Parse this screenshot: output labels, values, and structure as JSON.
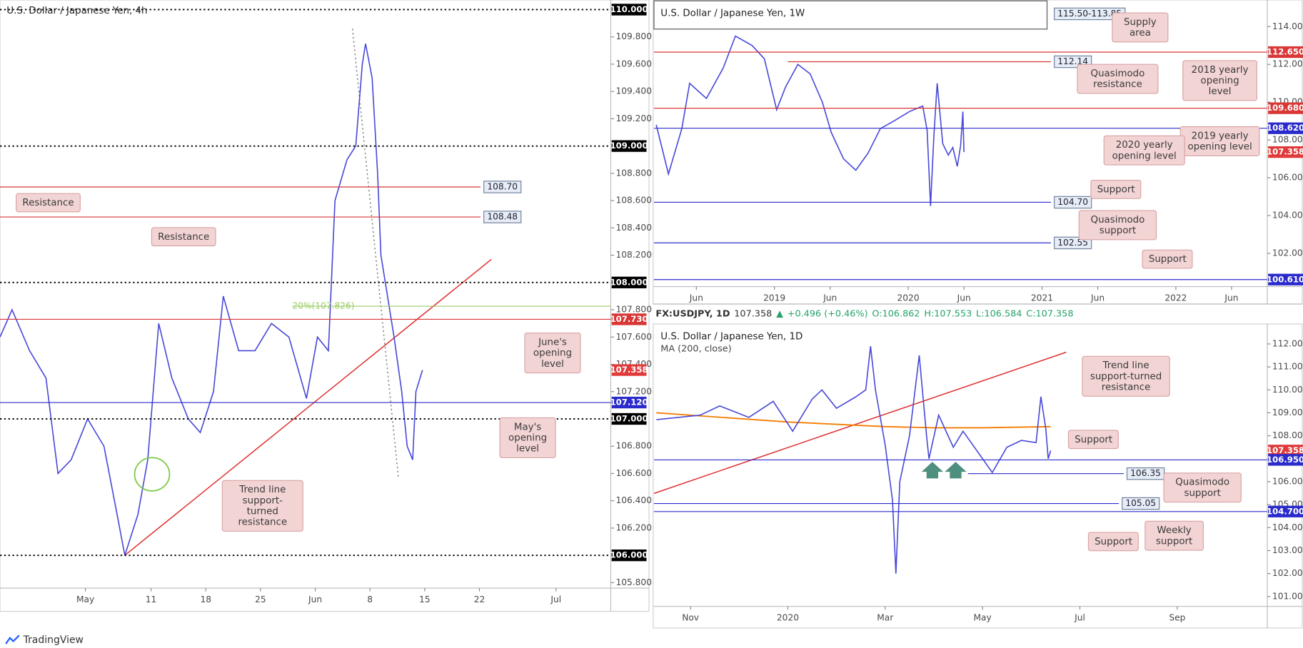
{
  "header": {
    "symbol": "FX:USDJPY, 1D",
    "last": "107.358",
    "change": "+0.496 (+0.46%)",
    "open": "O:106.862",
    "high": "H:107.553",
    "low": "L:106.584",
    "close": "C:107.358"
  },
  "footer": {
    "brand": "TradingView"
  },
  "chart_data": [
    {
      "type": "line",
      "title": "U.S. Dollar / Japanese Yen, 4h",
      "color": "#4a4ad8",
      "xlim": [
        -3.8,
        52
      ],
      "ylim": [
        105.76,
        110.04
      ],
      "xticks": [
        {
          "value": 4,
          "label": "May"
        },
        {
          "value": 10,
          "label": "11"
        },
        {
          "value": 15,
          "label": "18"
        },
        {
          "value": 20,
          "label": "25"
        },
        {
          "value": 25,
          "label": "Jun"
        },
        {
          "value": 30,
          "label": "8"
        },
        {
          "value": 35,
          "label": "15"
        },
        {
          "value": 40,
          "label": "22"
        },
        {
          "value": 47,
          "label": "Jul"
        }
      ],
      "yticks": [
        {
          "value": 105.8,
          "label": "105.800"
        },
        {
          "value": 106.2,
          "label": "106.200"
        },
        {
          "value": 106.4,
          "label": "106.400"
        },
        {
          "value": 106.6,
          "label": "106.600"
        },
        {
          "value": 106.8,
          "label": "106.800"
        },
        {
          "value": 107.2,
          "label": "107.200"
        },
        {
          "value": 107.4,
          "label": "107.400"
        },
        {
          "value": 107.6,
          "label": "107.600"
        },
        {
          "value": 107.8,
          "label": "107.800"
        },
        {
          "value": 108.2,
          "label": "108.200"
        },
        {
          "value": 108.4,
          "label": "108.400"
        },
        {
          "value": 108.6,
          "label": "108.600"
        },
        {
          "value": 108.8,
          "label": "108.800"
        },
        {
          "value": 109.2,
          "label": "109.200"
        },
        {
          "value": 109.4,
          "label": "109.400"
        },
        {
          "value": 109.6,
          "label": "109.600"
        },
        {
          "value": 109.8,
          "label": "109.800"
        }
      ],
      "x": [
        -3.8,
        -2.7,
        -1.1,
        0.4,
        1.5,
        2.7,
        4.2,
        5.7,
        6.9,
        7.6,
        8.8,
        9.7,
        10.7,
        11.9,
        13.4,
        14.5,
        15.7,
        16.6,
        18.0,
        19.5,
        21.0,
        22.6,
        24.2,
        25.2,
        26.2,
        26.8,
        27.9,
        28.7,
        29.3,
        29.6,
        30.2,
        30.7,
        31.0,
        31.6,
        32.2,
        32.9,
        33.4,
        33.9,
        34.2,
        34.8
      ],
      "values": [
        107.6,
        107.8,
        107.5,
        107.3,
        106.6,
        106.7,
        107.0,
        106.8,
        106.3,
        106.0,
        106.3,
        106.7,
        107.7,
        107.3,
        107.0,
        106.9,
        107.2,
        107.9,
        107.5,
        107.5,
        107.7,
        107.6,
        107.15,
        107.6,
        107.5,
        108.6,
        108.9,
        109.0,
        109.6,
        109.75,
        109.5,
        108.8,
        108.2,
        107.9,
        107.6,
        107.2,
        106.8,
        106.7,
        107.2,
        107.358
      ],
      "levels": [
        {
          "value": 110,
          "label": "110.000",
          "color": "#000000",
          "line": "dotted"
        },
        {
          "value": 109,
          "label": "109.000",
          "color": "#000000",
          "line": "dotted"
        },
        {
          "value": 108,
          "label": "108.000",
          "color": "#000000",
          "line": "dotted"
        },
        {
          "value": 107.73,
          "label": "107.730",
          "color": "#d93636",
          "line": "solid"
        },
        {
          "value": 107.358,
          "label": "107.358",
          "color": "#e03a3a",
          "line": "none"
        },
        {
          "value": 107.12,
          "label": "107.120",
          "color": "#2b2bcc",
          "line": "solid"
        },
        {
          "value": 107,
          "label": "107.000",
          "color": "#000000",
          "line": "dotted"
        },
        {
          "value": 106,
          "label": "106.000",
          "color": "#000000",
          "line": "dotted"
        }
      ],
      "marks": [
        {
          "value": 108.7,
          "label": "108.70",
          "x": [
            -3.8,
            40.1
          ],
          "color": "#d93636"
        },
        {
          "value": 108.48,
          "label": "108.48",
          "x": [
            -3.8,
            40.1
          ],
          "color": "#d93636"
        },
        {
          "value": 107.826,
          "label": "20%(107.826)",
          "x": [
            22.9,
            52
          ],
          "color": "#9ccc65",
          "plain": true
        }
      ],
      "trendlines": [
        {
          "x": [
            7.6,
            41.1
          ],
          "values": [
            106.0,
            108.17
          ],
          "color": "#e03030"
        },
        {
          "x": [
            28.4,
            32.6
          ],
          "values": [
            109.86,
            106.57
          ],
          "color": "#888888",
          "dotted": true
        }
      ],
      "annotations": [
        "Resistance",
        "Resistance",
        "June's opening level",
        "May's opening level",
        "Trend line support-turned resistance"
      ]
    },
    {
      "type": "line",
      "title": "U.S. Dollar / Japanese Yen, 1W",
      "color": "#4a4ad8",
      "xlim": [
        1.2,
        56.2
      ],
      "ylim": [
        100.24,
        115.32
      ],
      "xticks": [
        {
          "value": 5,
          "label": "Jun"
        },
        {
          "value": 12,
          "label": "2019"
        },
        {
          "value": 17,
          "label": "Jun"
        },
        {
          "value": 24,
          "label": "2020"
        },
        {
          "value": 29,
          "label": "Jun"
        },
        {
          "value": 36,
          "label": "2021"
        },
        {
          "value": 41,
          "label": "Jun"
        },
        {
          "value": 48,
          "label": "2022"
        },
        {
          "value": 53,
          "label": "Jun"
        }
      ],
      "yticks": [
        {
          "value": 102,
          "label": "102.000"
        },
        {
          "value": 104,
          "label": "104.000"
        },
        {
          "value": 106,
          "label": "106.000"
        },
        {
          "value": 108,
          "label": "108.000"
        },
        {
          "value": 110,
          "label": "110.000"
        },
        {
          "value": 112,
          "label": "112.000"
        },
        {
          "value": 114,
          "label": "114.000"
        }
      ],
      "x": [
        1.4,
        2.5,
        3.7,
        4.4,
        5.9,
        7.4,
        8.5,
        10.0,
        11.1,
        12.2,
        13.0,
        14.1,
        15.2,
        16.3,
        17.1,
        18.2,
        19.3,
        20.4,
        21.5,
        22.7,
        24.1,
        25.3,
        25.7,
        26.0,
        26.3,
        26.6,
        27.1,
        27.6,
        28.0,
        28.4,
        28.7,
        28.9,
        29.0
      ],
      "values": [
        108.8,
        106.2,
        108.6,
        111.0,
        110.2,
        111.8,
        113.5,
        113.0,
        112.3,
        109.6,
        110.8,
        112.0,
        111.5,
        110.0,
        108.4,
        107.0,
        106.4,
        107.3,
        108.6,
        109.0,
        109.5,
        109.8,
        108.5,
        104.5,
        108.2,
        111.0,
        107.8,
        107.2,
        107.6,
        106.6,
        107.7,
        109.5,
        107.358
      ],
      "levels": [
        {
          "value": 112.65,
          "label": "112.650",
          "color": "#d93636",
          "line": "solid"
        },
        {
          "value": 109.68,
          "label": "109.680",
          "color": "#d93636",
          "line": "solid"
        },
        {
          "value": 108.62,
          "label": "108.620",
          "color": "#2b2bcc",
          "line": "solid"
        },
        {
          "value": 107.358,
          "label": "107.358",
          "color": "#e03a3a",
          "line": "none"
        },
        {
          "value": 100.61,
          "label": "100.610",
          "color": "#2b2bcc",
          "line": "solid"
        }
      ],
      "zone": {
        "low": 113.85,
        "high": 115.5,
        "label": "115.50-113.85",
        "x": 36.8
      },
      "marks": [
        {
          "value": 112.14,
          "label": "112.14",
          "x": [
            13.2,
            36.8
          ],
          "color": "#d93636"
        },
        {
          "value": 104.7,
          "label": "104.70",
          "x": [
            1.2,
            36.8
          ],
          "color": "#2b2bcc"
        },
        {
          "value": 102.55,
          "label": "102.55",
          "x": [
            1.2,
            36.8
          ],
          "color": "#2b2bcc"
        }
      ],
      "trendlines": [],
      "annotations": [
        "Supply area",
        "Quasimodo resistance",
        "2018 yearly opening level",
        "2019 yearly opening level",
        "2020 yearly opening level",
        "Support",
        "Quasimodo support",
        "Support"
      ]
    },
    {
      "type": "line",
      "title": "U.S. Dollar / Japanese Yen, 1D",
      "subtitle": "MA (200, close)",
      "color": "#4a4ad8",
      "xlim": [
        9.25,
        21.85
      ],
      "ylim": [
        100.57,
        112.69
      ],
      "xticks": [
        {
          "value": 10,
          "label": "Nov"
        },
        {
          "value": 12,
          "label": "2020"
        },
        {
          "value": 14,
          "label": "Mar"
        },
        {
          "value": 16,
          "label": "May"
        },
        {
          "value": 18,
          "label": "Jul"
        },
        {
          "value": 20,
          "label": "Sep"
        }
      ],
      "yticks": [
        {
          "value": 101,
          "label": "101.000"
        },
        {
          "value": 102,
          "label": "102.000"
        },
        {
          "value": 103,
          "label": "103.000"
        },
        {
          "value": 104,
          "label": "104.000"
        },
        {
          "value": 105,
          "label": "105.000"
        },
        {
          "value": 106,
          "label": "106.000"
        },
        {
          "value": 108,
          "label": "108.000"
        },
        {
          "value": 109,
          "label": "109.000"
        },
        {
          "value": 110,
          "label": "110.000"
        },
        {
          "value": 111,
          "label": "111.000"
        },
        {
          "value": 112,
          "label": "112.000"
        }
      ],
      "x": [
        9.3,
        10.2,
        10.6,
        11.2,
        11.7,
        12.1,
        12.5,
        12.7,
        13.0,
        13.4,
        13.6,
        13.7,
        13.8,
        14.0,
        14.15,
        14.22,
        14.3,
        14.5,
        14.7,
        14.85,
        14.9,
        15.1,
        15.4,
        15.6,
        16.0,
        16.2,
        16.5,
        16.8,
        17.1,
        17.2,
        17.3,
        17.35,
        17.4
      ],
      "values": [
        108.7,
        108.9,
        109.3,
        108.8,
        109.5,
        108.2,
        109.6,
        110.0,
        109.2,
        109.7,
        110.0,
        111.9,
        110.0,
        107.6,
        105.2,
        102.0,
        106.0,
        108.0,
        111.5,
        108.0,
        107.0,
        108.9,
        107.5,
        108.2,
        107.0,
        106.4,
        107.5,
        107.8,
        107.7,
        109.7,
        108.3,
        107.0,
        107.358
      ],
      "indicator": {
        "x": [
          9.3,
          12,
          14,
          15,
          16,
          17.4
        ],
        "values": [
          109.0,
          108.6,
          108.4,
          108.35,
          108.35,
          108.4
        ],
        "color": "#f57c00"
      },
      "levels": [
        {
          "value": 107.358,
          "label": "107.358",
          "color": "#e03a3a",
          "line": "none"
        },
        {
          "value": 106.95,
          "label": "106.950",
          "color": "#2b2bcc",
          "line": "solid"
        },
        {
          "value": 104.7,
          "label": "104.700",
          "color": "#2b2bcc",
          "line": "solid"
        }
      ],
      "marks": [
        {
          "value": 106.35,
          "label": "106.35",
          "x": [
            15.7,
            18.9
          ],
          "color": "#2b2bcc"
        },
        {
          "value": 105.05,
          "label": "105.05",
          "x": [
            9.25,
            18.8
          ],
          "color": "#2b2bcc"
        }
      ],
      "trendlines": [
        {
          "x": [
            9.25,
            17.72
          ],
          "values": [
            105.49,
            111.64
          ],
          "color": "#e03030"
        }
      ],
      "annotations": [
        "Support",
        "Trend line support-turned resistance",
        "Quasimodo support",
        "Support",
        "Weekly support"
      ]
    }
  ]
}
